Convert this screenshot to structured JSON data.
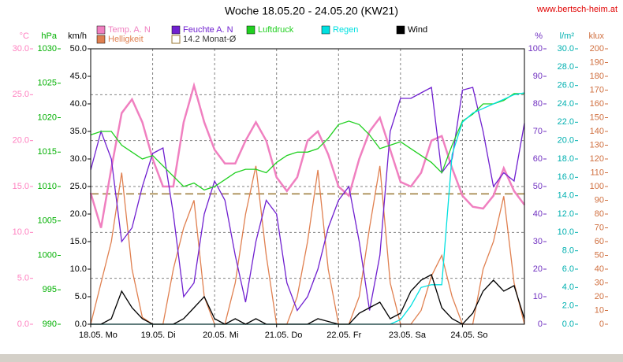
{
  "chart_data": {
    "type": "line",
    "title": "Woche 18.05.20 - 24.05.20 (KW21)",
    "source": "www.bertsch-heim.at",
    "x": [
      0,
      4,
      8,
      12,
      16,
      20,
      24,
      28,
      32,
      36,
      40,
      44,
      48,
      52,
      56,
      60,
      64,
      68,
      72,
      76,
      80,
      84,
      88,
      92,
      96,
      100,
      104,
      108,
      112,
      116,
      120,
      124,
      128,
      132,
      136,
      140,
      144,
      148,
      152,
      156,
      160,
      164,
      168
    ],
    "xlim": [
      0,
      168
    ],
    "xticks": [
      {
        "value": 0,
        "label": "18.05. Mo"
      },
      {
        "value": 24,
        "label": "19.05. Di"
      },
      {
        "value": 48,
        "label": "20.05. Mi"
      },
      {
        "value": 72,
        "label": "21.05. Do"
      },
      {
        "value": 96,
        "label": "22.05. Fr"
      },
      {
        "value": 120,
        "label": "23.05. Sa"
      },
      {
        "value": 144,
        "label": "24.05. So"
      }
    ],
    "grid": true,
    "axes": {
      "temp": {
        "unit": "°C",
        "color": "#ff80c0",
        "lim": [
          0,
          30
        ],
        "ticks": [
          {
            "value": 0,
            "label": "0.0"
          },
          {
            "value": 5,
            "label": "5.0"
          },
          {
            "value": 10,
            "label": "10.0"
          },
          {
            "value": 15,
            "label": "15.0"
          },
          {
            "value": 20,
            "label": "20.0"
          },
          {
            "value": 25,
            "label": "25.0"
          },
          {
            "value": 30,
            "label": "30.0"
          }
        ]
      },
      "hpa": {
        "unit": "hPa",
        "color": "#00b000",
        "lim": [
          990,
          1030
        ],
        "ticks": [
          990,
          995,
          1000,
          1005,
          1010,
          1015,
          1020,
          1025,
          1030
        ]
      },
      "wind": {
        "unit": "km/h",
        "color": "#000000",
        "lim": [
          0,
          50
        ],
        "ticks": [
          {
            "value": 0,
            "label": "0.0"
          },
          {
            "value": 5,
            "label": "5.0"
          },
          {
            "value": 10,
            "label": "10.0"
          },
          {
            "value": 15,
            "label": "15.0"
          },
          {
            "value": 20,
            "label": "20.0"
          },
          {
            "value": 25,
            "label": "25.0"
          },
          {
            "value": 30,
            "label": "30.0"
          },
          {
            "value": 35,
            "label": "35.0"
          },
          {
            "value": 40,
            "label": "40.0"
          },
          {
            "value": 45,
            "label": "45.0"
          },
          {
            "value": 50,
            "label": "50.0"
          }
        ]
      },
      "pct": {
        "unit": "%",
        "color": "#7030c0",
        "lim": [
          0,
          100
        ],
        "ticks": [
          0,
          10,
          20,
          30,
          40,
          50,
          60,
          70,
          80,
          90,
          100
        ]
      },
      "rain": {
        "unit": "l/m²",
        "color": "#00b0b0",
        "lim": [
          0,
          30
        ],
        "ticks": [
          {
            "value": 0,
            "label": "0.0"
          },
          {
            "value": 2,
            "label": "2.0"
          },
          {
            "value": 4,
            "label": "4.0"
          },
          {
            "value": 6,
            "label": "6.0"
          },
          {
            "value": 8,
            "label": "8.0"
          },
          {
            "value": 10,
            "label": "10.0"
          },
          {
            "value": 12,
            "label": "12.0"
          },
          {
            "value": 14,
            "label": "14.0"
          },
          {
            "value": 16,
            "label": "16.0"
          },
          {
            "value": 18,
            "label": "18.0"
          },
          {
            "value": 20,
            "label": "20.0"
          },
          {
            "value": 22,
            "label": "22.0"
          },
          {
            "value": 24,
            "label": "24.0"
          },
          {
            "value": 26,
            "label": "26.0"
          },
          {
            "value": 28,
            "label": "28.0"
          },
          {
            "value": 30,
            "label": "30.0"
          }
        ]
      },
      "klux": {
        "unit": "klux",
        "color": "#d07040",
        "lim": [
          0,
          200
        ],
        "ticks": [
          0,
          10,
          20,
          30,
          40,
          50,
          60,
          70,
          80,
          90,
          100,
          110,
          120,
          130,
          140,
          150,
          160,
          170,
          180,
          190,
          200
        ]
      }
    },
    "series": [
      {
        "name": "Temp. A. N",
        "color": "#f080c0",
        "axis": "temp",
        "values": [
          14.3,
          10.5,
          17,
          23,
          24.5,
          22,
          18,
          15,
          15,
          22,
          26,
          22,
          19,
          17.5,
          17.5,
          20,
          22,
          20,
          16,
          14.5,
          16,
          20,
          21,
          18.5,
          15,
          14,
          18,
          21,
          22.5,
          19,
          15.5,
          15,
          16.5,
          20,
          20.5,
          17,
          14,
          12.8,
          12.6,
          14,
          17,
          14.5,
          13
        ]
      },
      {
        "name": "Helligkeit",
        "color": "#e08050",
        "axis": "klux",
        "values": [
          0,
          30,
          60,
          110,
          40,
          5,
          0,
          0,
          40,
          70,
          90,
          20,
          0,
          0,
          30,
          80,
          115,
          50,
          0,
          0,
          20,
          60,
          112,
          40,
          0,
          0,
          20,
          70,
          115,
          30,
          0,
          0,
          10,
          35,
          50,
          20,
          0,
          0,
          40,
          60,
          93,
          30,
          0
        ]
      },
      {
        "name": "Feuchte A. N",
        "color": "#7020d0",
        "axis": "pct",
        "values": [
          56,
          70,
          60,
          30,
          35,
          50,
          62,
          64,
          40,
          10,
          15,
          40,
          52,
          45,
          25,
          8,
          30,
          45,
          40,
          15,
          5,
          10,
          20,
          35,
          45,
          50,
          30,
          5,
          25,
          70,
          82,
          82,
          84,
          86,
          55,
          60,
          85,
          86,
          70,
          50,
          55,
          52,
          73
        ]
      },
      {
        "name": "Luftdruck",
        "color": "#20d020",
        "axis": "hpa",
        "values": [
          1017.5,
          1018,
          1018,
          1016,
          1015,
          1014,
          1014.5,
          1013,
          1011.5,
          1010,
          1010.5,
          1009.5,
          1010,
          1011,
          1012,
          1012.5,
          1012.5,
          1012,
          1013.5,
          1014.5,
          1015,
          1015,
          1015.5,
          1017,
          1019,
          1019.5,
          1019,
          1017.5,
          1015.5,
          1016,
          1016.5,
          1015.5,
          1014.5,
          1013.5,
          1012,
          1016,
          1019.5,
          1020.5,
          1022,
          1022,
          1022.5,
          1023.5,
          1023.5
        ]
      },
      {
        "name": "Regen",
        "color": "#00e0e0",
        "axis": "rain",
        "values": [
          0,
          0,
          0,
          0,
          0,
          0,
          0,
          0,
          0,
          0,
          0,
          0,
          0,
          0,
          0,
          0,
          0,
          0,
          0,
          0,
          0,
          0,
          0,
          0,
          0,
          0,
          0,
          0,
          0,
          0,
          0.5,
          2,
          4,
          4.3,
          4.3,
          18.5,
          22,
          23,
          23.5,
          24,
          24.5,
          25,
          25.2
        ]
      },
      {
        "name": "Wind",
        "color": "#000000",
        "axis": "wind",
        "values": [
          0,
          0,
          1,
          6,
          3,
          1,
          0,
          0,
          0,
          1,
          3,
          5,
          1,
          0,
          1,
          0,
          1,
          0,
          0,
          0,
          0,
          0,
          1,
          0.5,
          0,
          0,
          2,
          3,
          4,
          1,
          2,
          6,
          8,
          9,
          3,
          1,
          0,
          2,
          6,
          8,
          6,
          7,
          1
        ]
      }
    ],
    "reference": {
      "label": "14.2 Monat-Ø",
      "value": 14.2,
      "axis": "temp",
      "color": "#997733"
    }
  }
}
